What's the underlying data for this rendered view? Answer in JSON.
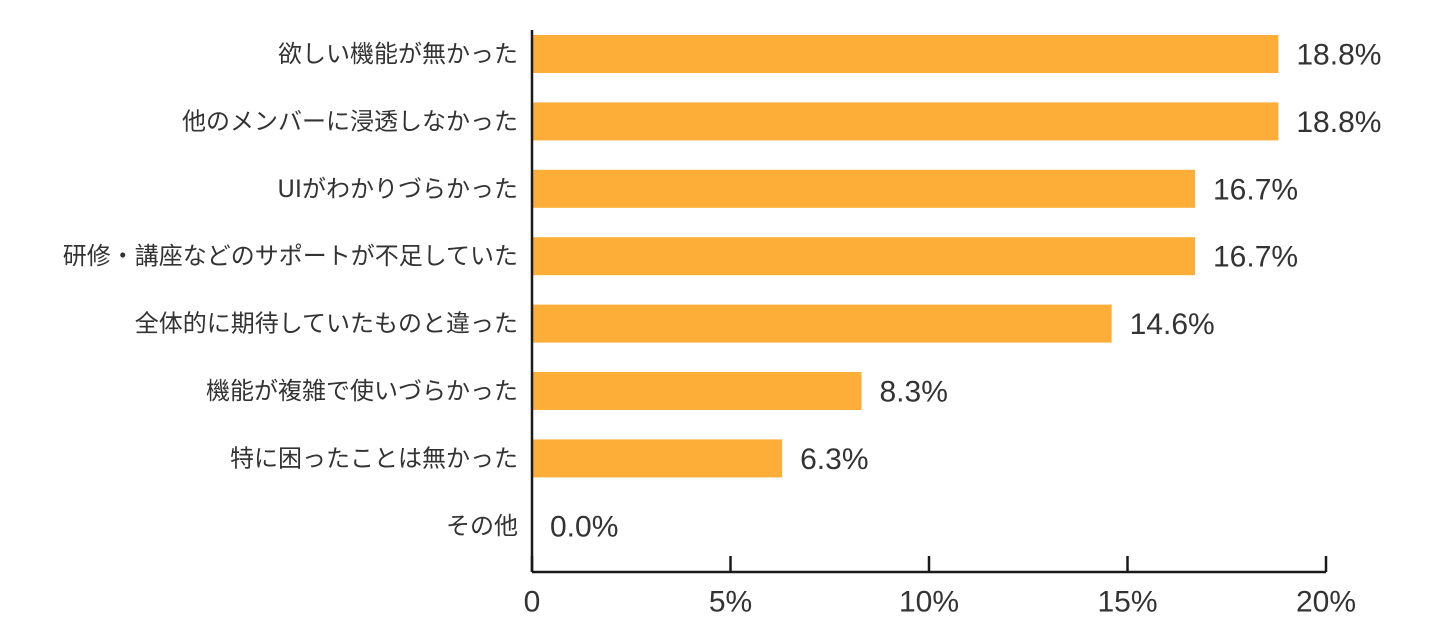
{
  "chart_data": {
    "type": "bar",
    "orientation": "horizontal",
    "categories": [
      "欲しい機能が無かった",
      "他のメンバーに浸透しなかった",
      "UIがわかりづらかった",
      "研修・講座などのサポートが不足していた",
      "全体的に期待していたものと違った",
      "機能が複雑で使いづらかった",
      "特に困ったことは無かった",
      "その他"
    ],
    "values": [
      18.8,
      18.8,
      16.7,
      16.7,
      14.6,
      8.3,
      6.3,
      0.0
    ],
    "data_labels": [
      "18.8%",
      "18.8%",
      "16.7%",
      "16.7%",
      "14.6%",
      "8.3%",
      "6.3%",
      "0.0%"
    ],
    "xlim": [
      0,
      20
    ],
    "x_ticks": [
      0,
      5,
      10,
      15,
      20
    ],
    "x_tick_labels": [
      "0",
      "5%",
      "10%",
      "15%",
      "20%"
    ],
    "grid": false,
    "bar_color": "#FDAE38"
  }
}
